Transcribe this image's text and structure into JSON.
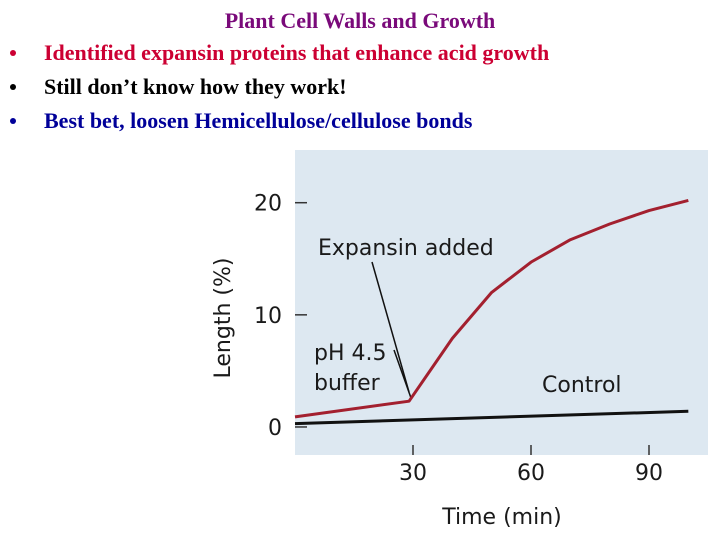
{
  "header": {
    "title": "Plant Cell Walls and Growth",
    "color": "#7a0a7a"
  },
  "bullets": [
    {
      "text": "Identified expansin proteins that enhance acid growth",
      "color": "#cc0033"
    },
    {
      "text": "Still don’t know how they work!",
      "color": "#000000"
    },
    {
      "text": "Best bet, loosen Hemicellulose/cellulose bonds",
      "color": "#000099"
    }
  ],
  "chart_data": {
    "type": "line",
    "x_label": "Time (min)",
    "y_label": "Length (%)",
    "annotations": {
      "expansin": "Expansin added",
      "buffer": [
        "pH 4.5",
        "buffer"
      ],
      "control": "Control"
    },
    "series": [
      {
        "name": "Expansin added",
        "color": "#a3202f",
        "x": [
          0,
          29,
          40,
          50,
          60,
          70,
          80,
          90,
          100
        ],
        "values": [
          0.9,
          2.3,
          7.9,
          12,
          14.7,
          16.7,
          18.1,
          19.3,
          20.2
        ]
      },
      {
        "name": "Control",
        "color": "#111111",
        "x": [
          0,
          100
        ],
        "values": [
          0.3,
          1.4
        ]
      }
    ],
    "xlim": [
      0,
      105
    ],
    "xticks": [
      30,
      60,
      90
    ],
    "ylim": [
      -2.5,
      24.7
    ],
    "yticks": [
      0,
      10,
      20
    ]
  }
}
